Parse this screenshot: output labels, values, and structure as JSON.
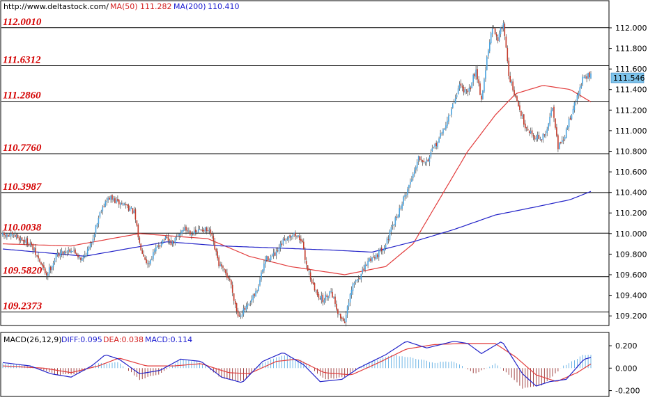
{
  "chart_data": [
    {
      "type": "candlestick",
      "header": {
        "url": "http://www.deltastock.com/",
        "ma50_label": "MA(50)",
        "ma50_value": "111.282",
        "ma200_label": "MA(200)",
        "ma200_value": "110.410"
      },
      "y_axis": {
        "ticks": [
          "112.000",
          "111.800",
          "111.600",
          "111.400",
          "111.200",
          "111.000",
          "110.800",
          "110.600",
          "110.400",
          "110.200",
          "110.000",
          "109.800",
          "109.600",
          "109.400",
          "109.200"
        ],
        "ylim": [
          109.12,
          112.25
        ]
      },
      "last_price": "111.546",
      "levels": [
        {
          "label": "112.0010",
          "value": 112.001
        },
        {
          "label": "111.6312",
          "value": 111.6312
        },
        {
          "label": "111.2860",
          "value": 111.286
        },
        {
          "label": "110.7760",
          "value": 110.776
        },
        {
          "label": "110.3987",
          "value": 110.3987
        },
        {
          "label": "110.0038",
          "value": 110.0038
        },
        {
          "label": "109.5820",
          "value": 109.582
        },
        {
          "label": "109.2373",
          "value": 109.2373
        }
      ],
      "price_anchors": [
        [
          0,
          109.98
        ],
        [
          10,
          109.97
        ],
        [
          20,
          109.9
        ],
        [
          32,
          109.6
        ],
        [
          40,
          109.8
        ],
        [
          50,
          109.85
        ],
        [
          58,
          109.75
        ],
        [
          64,
          109.88
        ],
        [
          72,
          110.25
        ],
        [
          78,
          110.35
        ],
        [
          84,
          110.3
        ],
        [
          90,
          110.28
        ],
        [
          96,
          110.2
        ],
        [
          100,
          109.9
        ],
        [
          106,
          109.7
        ],
        [
          112,
          109.85
        ],
        [
          118,
          109.95
        ],
        [
          124,
          109.9
        ],
        [
          132,
          110.05
        ],
        [
          140,
          110.0
        ],
        [
          146,
          110.05
        ],
        [
          152,
          110.0
        ],
        [
          158,
          109.7
        ],
        [
          166,
          109.55
        ],
        [
          172,
          109.2
        ],
        [
          180,
          109.3
        ],
        [
          186,
          109.45
        ],
        [
          192,
          109.75
        ],
        [
          200,
          109.8
        ],
        [
          206,
          109.95
        ],
        [
          212,
          110.0
        ],
        [
          218,
          109.95
        ],
        [
          222,
          109.7
        ],
        [
          228,
          109.45
        ],
        [
          234,
          109.35
        ],
        [
          240,
          109.45
        ],
        [
          246,
          109.2
        ],
        [
          250,
          109.15
        ],
        [
          256,
          109.5
        ],
        [
          262,
          109.6
        ],
        [
          268,
          109.75
        ],
        [
          274,
          109.8
        ],
        [
          280,
          109.9
        ],
        [
          286,
          110.1
        ],
        [
          292,
          110.3
        ],
        [
          298,
          110.5
        ],
        [
          304,
          110.75
        ],
        [
          310,
          110.7
        ],
        [
          316,
          110.85
        ],
        [
          322,
          111.0
        ],
        [
          328,
          111.2
        ],
        [
          334,
          111.45
        ],
        [
          340,
          111.35
        ],
        [
          346,
          111.6
        ],
        [
          350,
          111.3
        ],
        [
          354,
          111.7
        ],
        [
          358,
          112.0
        ],
        [
          362,
          111.9
        ],
        [
          366,
          112.05
        ],
        [
          370,
          111.55
        ],
        [
          374,
          111.35
        ],
        [
          378,
          111.2
        ],
        [
          382,
          111.05
        ],
        [
          388,
          110.95
        ],
        [
          394,
          110.92
        ],
        [
          398,
          111.0
        ],
        [
          402,
          111.25
        ],
        [
          406,
          110.85
        ],
        [
          410,
          110.9
        ],
        [
          414,
          111.1
        ],
        [
          418,
          111.25
        ],
        [
          424,
          111.5
        ],
        [
          430,
          111.55
        ]
      ],
      "ma50_anchors": [
        [
          0,
          109.9
        ],
        [
          50,
          109.88
        ],
        [
          100,
          110.0
        ],
        [
          150,
          109.95
        ],
        [
          180,
          109.78
        ],
        [
          210,
          109.68
        ],
        [
          250,
          109.6
        ],
        [
          280,
          109.68
        ],
        [
          300,
          109.9
        ],
        [
          320,
          110.35
        ],
        [
          340,
          110.8
        ],
        [
          360,
          111.15
        ],
        [
          375,
          111.36
        ],
        [
          395,
          111.44
        ],
        [
          415,
          111.4
        ],
        [
          430,
          111.28
        ]
      ],
      "ma200_anchors": [
        [
          0,
          109.85
        ],
        [
          60,
          109.78
        ],
        [
          120,
          109.92
        ],
        [
          160,
          109.88
        ],
        [
          200,
          109.86
        ],
        [
          240,
          109.84
        ],
        [
          270,
          109.82
        ],
        [
          300,
          109.92
        ],
        [
          330,
          110.04
        ],
        [
          360,
          110.18
        ],
        [
          390,
          110.26
        ],
        [
          415,
          110.33
        ],
        [
          430,
          110.41
        ]
      ]
    },
    {
      "type": "macd",
      "header": {
        "name": "MACD(26,12,9)",
        "diff_label": "DIFF:0.095",
        "dea_label": "DEA:0.038",
        "macd_label": "MACD:0.114"
      },
      "y_axis": {
        "ticks": [
          "0.200",
          "0.000",
          "-0.200"
        ],
        "ylim": [
          -0.24,
          0.3
        ]
      },
      "diff_anchors": [
        [
          0,
          0.05
        ],
        [
          20,
          0.02
        ],
        [
          35,
          -0.05
        ],
        [
          50,
          -0.08
        ],
        [
          65,
          0.02
        ],
        [
          75,
          0.12
        ],
        [
          85,
          0.08
        ],
        [
          100,
          -0.05
        ],
        [
          115,
          -0.02
        ],
        [
          130,
          0.08
        ],
        [
          145,
          0.06
        ],
        [
          160,
          -0.08
        ],
        [
          175,
          -0.13
        ],
        [
          190,
          0.06
        ],
        [
          205,
          0.14
        ],
        [
          220,
          0.03
        ],
        [
          232,
          -0.12
        ],
        [
          248,
          -0.1
        ],
        [
          260,
          0.0
        ],
        [
          280,
          0.12
        ],
        [
          295,
          0.24
        ],
        [
          310,
          0.18
        ],
        [
          330,
          0.24
        ],
        [
          340,
          0.22
        ],
        [
          350,
          0.13
        ],
        [
          365,
          0.24
        ],
        [
          380,
          -0.05
        ],
        [
          390,
          -0.16
        ],
        [
          400,
          -0.12
        ],
        [
          412,
          -0.1
        ],
        [
          425,
          0.08
        ],
        [
          430,
          0.095
        ]
      ],
      "dea_anchors": [
        [
          0,
          0.02
        ],
        [
          30,
          0.0
        ],
        [
          50,
          -0.04
        ],
        [
          70,
          0.02
        ],
        [
          85,
          0.09
        ],
        [
          105,
          0.02
        ],
        [
          125,
          0.02
        ],
        [
          145,
          0.04
        ],
        [
          165,
          -0.04
        ],
        [
          180,
          -0.05
        ],
        [
          200,
          0.06
        ],
        [
          215,
          0.08
        ],
        [
          235,
          -0.04
        ],
        [
          255,
          -0.06
        ],
        [
          275,
          0.05
        ],
        [
          295,
          0.17
        ],
        [
          315,
          0.21
        ],
        [
          335,
          0.22
        ],
        [
          360,
          0.22
        ],
        [
          375,
          0.1
        ],
        [
          390,
          -0.06
        ],
        [
          405,
          -0.12
        ],
        [
          420,
          -0.04
        ],
        [
          430,
          0.038
        ]
      ],
      "hist_anchors": [
        [
          0,
          0.04
        ],
        [
          20,
          0.02
        ],
        [
          40,
          -0.06
        ],
        [
          55,
          -0.05
        ],
        [
          70,
          0.04
        ],
        [
          85,
          0.05
        ],
        [
          100,
          -0.1
        ],
        [
          115,
          -0.05
        ],
        [
          130,
          0.08
        ],
        [
          145,
          0.05
        ],
        [
          160,
          -0.09
        ],
        [
          175,
          -0.12
        ],
        [
          190,
          0.05
        ],
        [
          205,
          0.12
        ],
        [
          220,
          0.06
        ],
        [
          235,
          -0.1
        ],
        [
          250,
          -0.08
        ],
        [
          265,
          0.04
        ],
        [
          285,
          0.12
        ],
        [
          300,
          0.09
        ],
        [
          315,
          0.05
        ],
        [
          330,
          0.06
        ],
        [
          345,
          -0.05
        ],
        [
          360,
          0.04
        ],
        [
          372,
          -0.08
        ],
        [
          380,
          -0.18
        ],
        [
          395,
          -0.15
        ],
        [
          410,
          0.02
        ],
        [
          425,
          0.12
        ],
        [
          430,
          0.114
        ]
      ]
    }
  ]
}
